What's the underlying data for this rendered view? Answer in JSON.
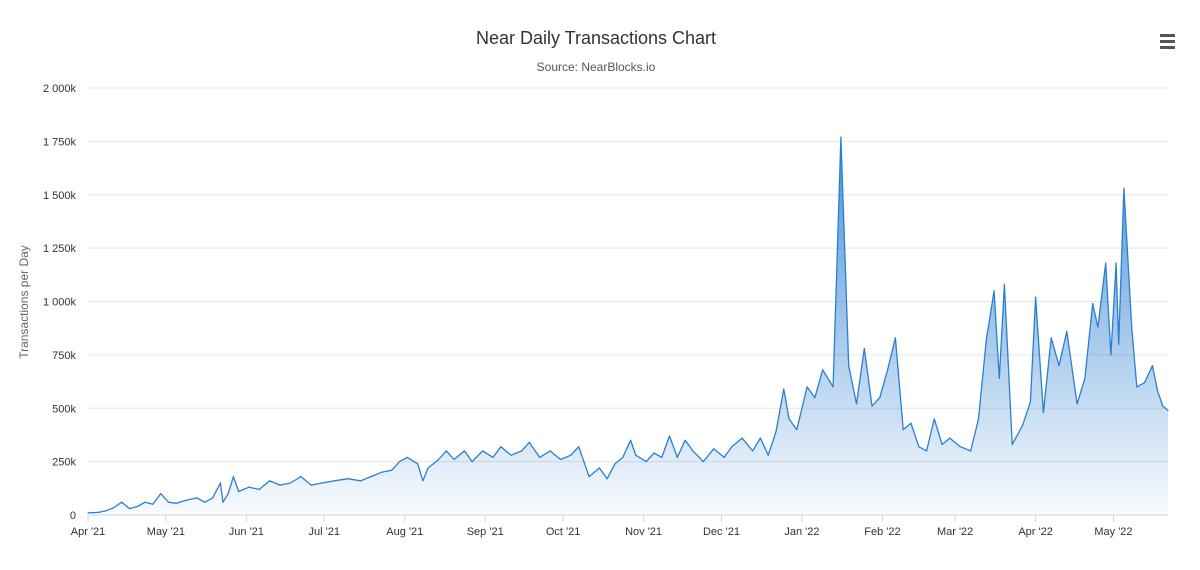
{
  "chart_data": {
    "type": "area",
    "title": "Near Daily Transactions Chart",
    "subtitle": "Source: NearBlocks.io",
    "xlabel": "",
    "ylabel": "Transactions per Day",
    "ylim": [
      0,
      2000000
    ],
    "yticks": [
      0,
      250000,
      500000,
      750000,
      1000000,
      1250000,
      1500000,
      1750000,
      2000000
    ],
    "ytick_labels": [
      "0",
      "250k",
      "500k",
      "750k",
      "1 000k",
      "1 250k",
      "1 500k",
      "1 750k",
      "2 000k"
    ],
    "xlim": [
      "2021-04-01",
      "2022-05-22"
    ],
    "xticks": [
      "2021-04-01",
      "2021-05-01",
      "2021-06-01",
      "2021-07-01",
      "2021-08-01",
      "2021-09-01",
      "2021-10-01",
      "2021-11-01",
      "2021-12-01",
      "2022-01-01",
      "2022-02-01",
      "2022-03-01",
      "2022-04-01",
      "2022-05-01"
    ],
    "xtick_labels": [
      "Apr '21",
      "May '21",
      "Jun '21",
      "Jul '21",
      "Aug '21",
      "Sep '21",
      "Oct '21",
      "Nov '21",
      "Dec '21",
      "Jan '22",
      "Feb '22",
      "Mar '22",
      "Apr '22",
      "May '22"
    ],
    "grid": true,
    "legend": "none",
    "color": "#2b7fd0",
    "series": [
      {
        "points": [
          [
            "2021-04-01",
            10000
          ],
          [
            "2021-04-05",
            12000
          ],
          [
            "2021-04-08",
            20000
          ],
          [
            "2021-04-11",
            35000
          ],
          [
            "2021-04-14",
            60000
          ],
          [
            "2021-04-17",
            30000
          ],
          [
            "2021-04-20",
            40000
          ],
          [
            "2021-04-23",
            60000
          ],
          [
            "2021-04-26",
            50000
          ],
          [
            "2021-04-29",
            100000
          ],
          [
            "2021-05-02",
            60000
          ],
          [
            "2021-05-05",
            55000
          ],
          [
            "2021-05-09",
            70000
          ],
          [
            "2021-05-13",
            80000
          ],
          [
            "2021-05-16",
            60000
          ],
          [
            "2021-05-19",
            80000
          ],
          [
            "2021-05-22",
            150000
          ],
          [
            "2021-05-23",
            60000
          ],
          [
            "2021-05-25",
            100000
          ],
          [
            "2021-05-27",
            180000
          ],
          [
            "2021-05-29",
            110000
          ],
          [
            "2021-06-02",
            130000
          ],
          [
            "2021-06-06",
            120000
          ],
          [
            "2021-06-10",
            160000
          ],
          [
            "2021-06-14",
            140000
          ],
          [
            "2021-06-18",
            150000
          ],
          [
            "2021-06-22",
            180000
          ],
          [
            "2021-06-26",
            140000
          ],
          [
            "2021-06-30",
            150000
          ],
          [
            "2021-07-05",
            160000
          ],
          [
            "2021-07-10",
            170000
          ],
          [
            "2021-07-15",
            160000
          ],
          [
            "2021-07-19",
            180000
          ],
          [
            "2021-07-23",
            200000
          ],
          [
            "2021-07-27",
            210000
          ],
          [
            "2021-07-30",
            250000
          ],
          [
            "2021-08-02",
            270000
          ],
          [
            "2021-08-06",
            240000
          ],
          [
            "2021-08-08",
            160000
          ],
          [
            "2021-08-10",
            220000
          ],
          [
            "2021-08-14",
            260000
          ],
          [
            "2021-08-17",
            300000
          ],
          [
            "2021-08-20",
            260000
          ],
          [
            "2021-08-24",
            300000
          ],
          [
            "2021-08-27",
            250000
          ],
          [
            "2021-08-31",
            300000
          ],
          [
            "2021-09-04",
            270000
          ],
          [
            "2021-09-07",
            320000
          ],
          [
            "2021-09-11",
            280000
          ],
          [
            "2021-09-15",
            300000
          ],
          [
            "2021-09-18",
            340000
          ],
          [
            "2021-09-22",
            270000
          ],
          [
            "2021-09-26",
            300000
          ],
          [
            "2021-09-30",
            260000
          ],
          [
            "2021-10-04",
            280000
          ],
          [
            "2021-10-07",
            320000
          ],
          [
            "2021-10-11",
            180000
          ],
          [
            "2021-10-15",
            220000
          ],
          [
            "2021-10-18",
            170000
          ],
          [
            "2021-10-21",
            240000
          ],
          [
            "2021-10-24",
            270000
          ],
          [
            "2021-10-27",
            350000
          ],
          [
            "2021-10-29",
            280000
          ],
          [
            "2021-11-02",
            250000
          ],
          [
            "2021-11-05",
            290000
          ],
          [
            "2021-11-08",
            270000
          ],
          [
            "2021-11-11",
            370000
          ],
          [
            "2021-11-14",
            270000
          ],
          [
            "2021-11-17",
            350000
          ],
          [
            "2021-11-20",
            300000
          ],
          [
            "2021-11-24",
            250000
          ],
          [
            "2021-11-28",
            310000
          ],
          [
            "2021-12-02",
            270000
          ],
          [
            "2021-12-05",
            320000
          ],
          [
            "2021-12-09",
            360000
          ],
          [
            "2021-12-13",
            300000
          ],
          [
            "2021-12-16",
            360000
          ],
          [
            "2021-12-19",
            280000
          ],
          [
            "2021-12-22",
            390000
          ],
          [
            "2021-12-25",
            590000
          ],
          [
            "2021-12-27",
            450000
          ],
          [
            "2021-12-30",
            400000
          ],
          [
            "2022-01-03",
            600000
          ],
          [
            "2022-01-06",
            550000
          ],
          [
            "2022-01-09",
            680000
          ],
          [
            "2022-01-13",
            600000
          ],
          [
            "2022-01-16",
            1770000
          ],
          [
            "2022-01-19",
            700000
          ],
          [
            "2022-01-22",
            520000
          ],
          [
            "2022-01-25",
            780000
          ],
          [
            "2022-01-28",
            510000
          ],
          [
            "2022-01-31",
            550000
          ],
          [
            "2022-02-03",
            680000
          ],
          [
            "2022-02-06",
            830000
          ],
          [
            "2022-02-09",
            400000
          ],
          [
            "2022-02-12",
            430000
          ],
          [
            "2022-02-15",
            320000
          ],
          [
            "2022-02-18",
            300000
          ],
          [
            "2022-02-21",
            450000
          ],
          [
            "2022-02-24",
            330000
          ],
          [
            "2022-02-27",
            360000
          ],
          [
            "2022-03-03",
            320000
          ],
          [
            "2022-03-07",
            300000
          ],
          [
            "2022-03-10",
            450000
          ],
          [
            "2022-03-13",
            820000
          ],
          [
            "2022-03-16",
            1050000
          ],
          [
            "2022-03-18",
            640000
          ],
          [
            "2022-03-20",
            1080000
          ],
          [
            "2022-03-23",
            330000
          ],
          [
            "2022-03-27",
            420000
          ],
          [
            "2022-03-30",
            530000
          ],
          [
            "2022-04-01",
            1020000
          ],
          [
            "2022-04-04",
            480000
          ],
          [
            "2022-04-07",
            830000
          ],
          [
            "2022-04-10",
            700000
          ],
          [
            "2022-04-13",
            860000
          ],
          [
            "2022-04-17",
            520000
          ],
          [
            "2022-04-20",
            640000
          ],
          [
            "2022-04-23",
            990000
          ],
          [
            "2022-04-25",
            880000
          ],
          [
            "2022-04-28",
            1180000
          ],
          [
            "2022-04-30",
            750000
          ],
          [
            "2022-05-02",
            1180000
          ],
          [
            "2022-05-03",
            800000
          ],
          [
            "2022-05-05",
            1530000
          ],
          [
            "2022-05-08",
            880000
          ],
          [
            "2022-05-10",
            600000
          ],
          [
            "2022-05-13",
            620000
          ],
          [
            "2022-05-16",
            700000
          ],
          [
            "2022-05-18",
            580000
          ],
          [
            "2022-05-20",
            510000
          ],
          [
            "2022-05-22",
            490000
          ]
        ]
      }
    ]
  },
  "menu": {
    "icon": "hamburger-menu-icon"
  }
}
